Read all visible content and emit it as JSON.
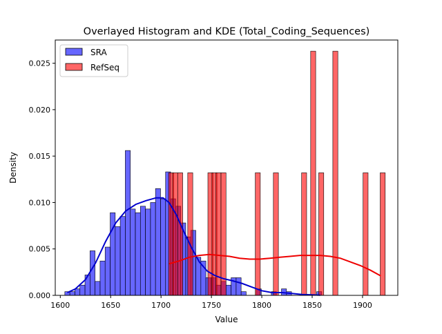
{
  "chart_data": {
    "type": "bar",
    "title": "Overlayed Histogram and KDE (Total_Coding_Sequences)",
    "xlabel": "Value",
    "ylabel": "Density",
    "xlim": [
      1595,
      1935
    ],
    "ylim": [
      0,
      0.0275
    ],
    "xticks": [
      "1600",
      "1650",
      "1700",
      "1750",
      "1800",
      "1850",
      "1900"
    ],
    "yticks": [
      "0.000",
      "0.005",
      "0.010",
      "0.015",
      "0.020",
      "0.025"
    ],
    "legend": {
      "position": "top-left",
      "entries": [
        "SRA",
        "RefSeq"
      ]
    },
    "grid": false,
    "colors": {
      "SRA": "#0000ff",
      "RefSeq": "#ff0000",
      "SRA_kde": "#0000cc",
      "RefSeq_kde": "#ee0000"
    },
    "bin_width": 5,
    "series": [
      {
        "name": "SRA",
        "bins": [
          {
            "x": 1607,
            "y": 0.0004
          },
          {
            "x": 1612,
            "y": 0.0004
          },
          {
            "x": 1617,
            "y": 0.0007
          },
          {
            "x": 1622,
            "y": 0.0011
          },
          {
            "x": 1627,
            "y": 0.0022
          },
          {
            "x": 1632,
            "y": 0.0048
          },
          {
            "x": 1637,
            "y": 0.0015
          },
          {
            "x": 1642,
            "y": 0.0037
          },
          {
            "x": 1647,
            "y": 0.0052
          },
          {
            "x": 1652,
            "y": 0.0089
          },
          {
            "x": 1657,
            "y": 0.0074
          },
          {
            "x": 1662,
            "y": 0.0085
          },
          {
            "x": 1667,
            "y": 0.0156
          },
          {
            "x": 1672,
            "y": 0.0093
          },
          {
            "x": 1677,
            "y": 0.0089
          },
          {
            "x": 1682,
            "y": 0.0096
          },
          {
            "x": 1687,
            "y": 0.0093
          },
          {
            "x": 1692,
            "y": 0.01
          },
          {
            "x": 1697,
            "y": 0.0115
          },
          {
            "x": 1702,
            "y": 0.0104
          },
          {
            "x": 1707,
            "y": 0.0133
          },
          {
            "x": 1712,
            "y": 0.0104
          },
          {
            "x": 1717,
            "y": 0.0096
          },
          {
            "x": 1722,
            "y": 0.0078
          },
          {
            "x": 1727,
            "y": 0.0063
          },
          {
            "x": 1732,
            "y": 0.007
          },
          {
            "x": 1737,
            "y": 0.0041
          },
          {
            "x": 1742,
            "y": 0.0037
          },
          {
            "x": 1747,
            "y": 0.0019
          },
          {
            "x": 1752,
            "y": 0.0019
          },
          {
            "x": 1757,
            "y": 0.0011
          },
          {
            "x": 1762,
            "y": 0.0015
          },
          {
            "x": 1767,
            "y": 0.0011
          },
          {
            "x": 1772,
            "y": 0.0019
          },
          {
            "x": 1777,
            "y": 0.0019
          },
          {
            "x": 1782,
            "y": 0.0004
          },
          {
            "x": 1797,
            "y": 0.0007
          },
          {
            "x": 1812,
            "y": 0.0004
          },
          {
            "x": 1822,
            "y": 0.0007
          },
          {
            "x": 1827,
            "y": 0.0004
          },
          {
            "x": 1857,
            "y": 0.0004
          }
        ],
        "kde": [
          [
            1607,
            0.0003
          ],
          [
            1615,
            0.0007
          ],
          [
            1625,
            0.0017
          ],
          [
            1635,
            0.0035
          ],
          [
            1645,
            0.0058
          ],
          [
            1655,
            0.0078
          ],
          [
            1665,
            0.0091
          ],
          [
            1675,
            0.0098
          ],
          [
            1685,
            0.0102
          ],
          [
            1695,
            0.0105
          ],
          [
            1702,
            0.0105
          ],
          [
            1708,
            0.01
          ],
          [
            1715,
            0.0087
          ],
          [
            1722,
            0.007
          ],
          [
            1730,
            0.0052
          ],
          [
            1738,
            0.0036
          ],
          [
            1746,
            0.0026
          ],
          [
            1754,
            0.0021
          ],
          [
            1762,
            0.0018
          ],
          [
            1770,
            0.0016
          ],
          [
            1780,
            0.0013
          ],
          [
            1790,
            0.0009
          ],
          [
            1800,
            0.0005
          ],
          [
            1810,
            0.0003
          ],
          [
            1820,
            0.0003
          ],
          [
            1830,
            0.0002
          ],
          [
            1840,
            0.0001
          ],
          [
            1850,
            5e-05
          ],
          [
            1858,
            2e-05
          ]
        ]
      },
      {
        "name": "RefSeq",
        "bins": [
          {
            "x": 1710,
            "y": 0.0132
          },
          {
            "x": 1714,
            "y": 0.0132
          },
          {
            "x": 1719,
            "y": 0.0132
          },
          {
            "x": 1729,
            "y": 0.0132
          },
          {
            "x": 1749,
            "y": 0.0132
          },
          {
            "x": 1753,
            "y": 0.0132
          },
          {
            "x": 1757,
            "y": 0.0132
          },
          {
            "x": 1762,
            "y": 0.0132
          },
          {
            "x": 1796,
            "y": 0.0132
          },
          {
            "x": 1814,
            "y": 0.0132
          },
          {
            "x": 1842,
            "y": 0.0132
          },
          {
            "x": 1851,
            "y": 0.0263
          },
          {
            "x": 1859,
            "y": 0.0132
          },
          {
            "x": 1873,
            "y": 0.0263
          },
          {
            "x": 1903,
            "y": 0.0132
          },
          {
            "x": 1920,
            "y": 0.0132
          }
        ],
        "kde": [
          [
            1708,
            0.0034
          ],
          [
            1718,
            0.0037
          ],
          [
            1728,
            0.0041
          ],
          [
            1738,
            0.0043
          ],
          [
            1748,
            0.0044
          ],
          [
            1758,
            0.0043
          ],
          [
            1768,
            0.0042
          ],
          [
            1778,
            0.004
          ],
          [
            1788,
            0.0039
          ],
          [
            1798,
            0.0039
          ],
          [
            1808,
            0.004
          ],
          [
            1818,
            0.0041
          ],
          [
            1828,
            0.0042
          ],
          [
            1838,
            0.0043
          ],
          [
            1848,
            0.0043
          ],
          [
            1858,
            0.0043
          ],
          [
            1868,
            0.0042
          ],
          [
            1878,
            0.004
          ],
          [
            1888,
            0.0036
          ],
          [
            1898,
            0.0032
          ],
          [
            1908,
            0.0027
          ],
          [
            1918,
            0.0021
          ]
        ]
      }
    ]
  }
}
